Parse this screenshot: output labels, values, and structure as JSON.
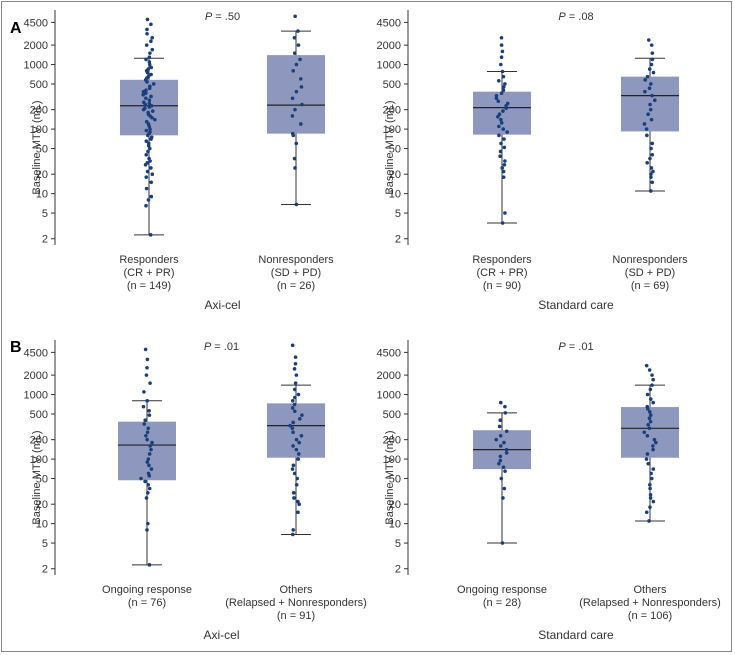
{
  "panel_letters": [
    "A",
    "B"
  ],
  "colors": {
    "box": "#8e98bf",
    "dot": "#1a3f7a",
    "line": "#333333"
  },
  "chart_data": [
    {
      "type": "box",
      "panel": "A",
      "group_label": "Axi-cel",
      "pvalue": ".50",
      "ylabel": "Baseline MTV (mL)",
      "yscale": "log",
      "ylim": [
        1.6,
        7000
      ],
      "yticks": [
        2,
        5,
        10,
        20,
        50,
        100,
        200,
        500,
        1000,
        2000,
        4500
      ],
      "categories": [
        {
          "lines": [
            "Responders",
            "(CR + PR)",
            "(n = 149)"
          ],
          "n": 149,
          "whisker_low": 2.3,
          "q1": 80,
          "median": 230,
          "q3": 580,
          "whisker_high": 1250,
          "points": [
            2.3,
            6.5,
            8,
            9,
            12,
            15,
            18,
            20,
            22,
            25,
            28,
            30,
            32,
            35,
            40,
            45,
            50,
            55,
            60,
            65,
            70,
            75,
            80,
            85,
            90,
            95,
            100,
            110,
            120,
            130,
            140,
            150,
            160,
            170,
            180,
            190,
            200,
            210,
            220,
            230,
            240,
            250,
            260,
            280,
            300,
            320,
            340,
            360,
            380,
            400,
            430,
            460,
            500,
            540,
            580,
            620,
            660,
            700,
            750,
            800,
            850,
            900,
            1000,
            1100,
            1200,
            1300,
            1500,
            1700,
            2000,
            2300,
            2600,
            3000,
            3500,
            4200,
            5000
          ]
        },
        {
          "lines": [
            "Nonresponders",
            "(SD + PD)",
            "(n = 26)"
          ],
          "n": 26,
          "whisker_low": 6.8,
          "q1": 85,
          "median": 235,
          "q3": 1400,
          "whisker_high": 3300,
          "points": [
            6.8,
            25,
            35,
            60,
            80,
            85,
            120,
            160,
            200,
            240,
            300,
            380,
            450,
            600,
            800,
            1000,
            1200,
            1500,
            2000,
            2600,
            3300,
            5600
          ]
        }
      ]
    },
    {
      "type": "box",
      "panel": "A",
      "group_label": "Standard care",
      "pvalue": ".08",
      "ylabel": "Baseline MTV (mL)",
      "yscale": "log",
      "ylim": [
        1.6,
        7000
      ],
      "yticks": [
        2,
        5,
        10,
        20,
        50,
        100,
        200,
        500,
        1000,
        2000,
        4500
      ],
      "categories": [
        {
          "lines": [
            "Responders",
            "(CR + PR)",
            "(n = 90)"
          ],
          "n": 90,
          "whisker_low": 3.5,
          "q1": 82,
          "median": 215,
          "q3": 380,
          "whisker_high": 780,
          "points": [
            3.5,
            5,
            18,
            22,
            25,
            28,
            32,
            38,
            45,
            52,
            60,
            70,
            80,
            90,
            100,
            110,
            125,
            140,
            155,
            170,
            190,
            210,
            230,
            250,
            270,
            300,
            330,
            360,
            400,
            450,
            500,
            560,
            650,
            780,
            1000,
            1300,
            1600,
            2000,
            2600
          ]
        },
        {
          "lines": [
            "Nonresponders",
            "(SD + PD)",
            "(n = 69)"
          ],
          "n": 69,
          "whisker_low": 11,
          "q1": 92,
          "median": 330,
          "q3": 650,
          "whisker_high": 1250,
          "points": [
            11,
            15,
            18,
            20,
            22,
            25,
            30,
            35,
            40,
            50,
            60,
            80,
            100,
            120,
            140,
            170,
            200,
            240,
            280,
            330,
            380,
            430,
            500,
            580,
            650,
            750,
            850,
            1000,
            1200,
            1500,
            2000,
            2400
          ]
        }
      ]
    },
    {
      "type": "box",
      "panel": "B",
      "group_label": "Axi-cel",
      "pvalue": ".01",
      "ylabel": "Baseline MTV (mL)",
      "yscale": "log",
      "ylim": [
        1.6,
        7000
      ],
      "yticks": [
        2,
        5,
        10,
        20,
        50,
        100,
        200,
        500,
        1000,
        2000,
        4500
      ],
      "categories": [
        {
          "lines": [
            "Ongoing response",
            "(n = 76)"
          ],
          "n": 76,
          "whisker_low": 2.3,
          "q1": 47,
          "median": 165,
          "q3": 380,
          "whisker_high": 800,
          "points": [
            2.3,
            8,
            10,
            25,
            30,
            35,
            40,
            45,
            50,
            55,
            60,
            70,
            80,
            90,
            100,
            120,
            140,
            160,
            180,
            200,
            230,
            260,
            300,
            350,
            400,
            480,
            560,
            650,
            800,
            1100,
            1500,
            2000,
            2600,
            3500,
            5000
          ]
        },
        {
          "lines": [
            "Others",
            "(Relapsed + Nonresponders)",
            "(n = 91)"
          ],
          "n": 91,
          "whisker_low": 6.8,
          "q1": 105,
          "median": 330,
          "q3": 730,
          "whisker_high": 1400,
          "points": [
            6.8,
            8,
            15,
            20,
            22,
            25,
            30,
            40,
            50,
            60,
            70,
            80,
            100,
            120,
            140,
            160,
            180,
            200,
            230,
            260,
            300,
            330,
            370,
            420,
            480,
            550,
            620,
            700,
            800,
            900,
            1000,
            1200,
            1500,
            2000,
            2500,
            3000,
            3800,
            5800
          ]
        }
      ]
    },
    {
      "type": "box",
      "panel": "B",
      "group_label": "Standard care",
      "pvalue": ".01",
      "ylabel": "Baseline MTV (mL)",
      "yscale": "log",
      "ylim": [
        1.6,
        7000
      ],
      "yticks": [
        2,
        5,
        10,
        20,
        50,
        100,
        200,
        500,
        1000,
        2000,
        4500
      ],
      "categories": [
        {
          "lines": [
            "Ongoing response",
            "(n = 28)"
          ],
          "n": 28,
          "whisker_low": 5,
          "q1": 70,
          "median": 140,
          "q3": 280,
          "whisker_high": 520,
          "points": [
            5,
            25,
            35,
            50,
            65,
            75,
            85,
            95,
            110,
            125,
            140,
            160,
            180,
            200,
            230,
            270,
            320,
            400,
            520,
            650,
            750
          ]
        },
        {
          "lines": [
            "Others",
            "(Relapsed + Nonresponders)",
            "(n = 106)"
          ],
          "n": 106,
          "whisker_low": 11,
          "q1": 105,
          "median": 300,
          "q3": 640,
          "whisker_high": 1400,
          "points": [
            11,
            15,
            18,
            22,
            25,
            28,
            35,
            40,
            50,
            60,
            70,
            85,
            100,
            120,
            140,
            160,
            180,
            200,
            230,
            260,
            300,
            340,
            380,
            430,
            480,
            540,
            600,
            650,
            750,
            850,
            1000,
            1200,
            1400,
            1700,
            2000,
            2400,
            2800
          ]
        }
      ]
    }
  ]
}
